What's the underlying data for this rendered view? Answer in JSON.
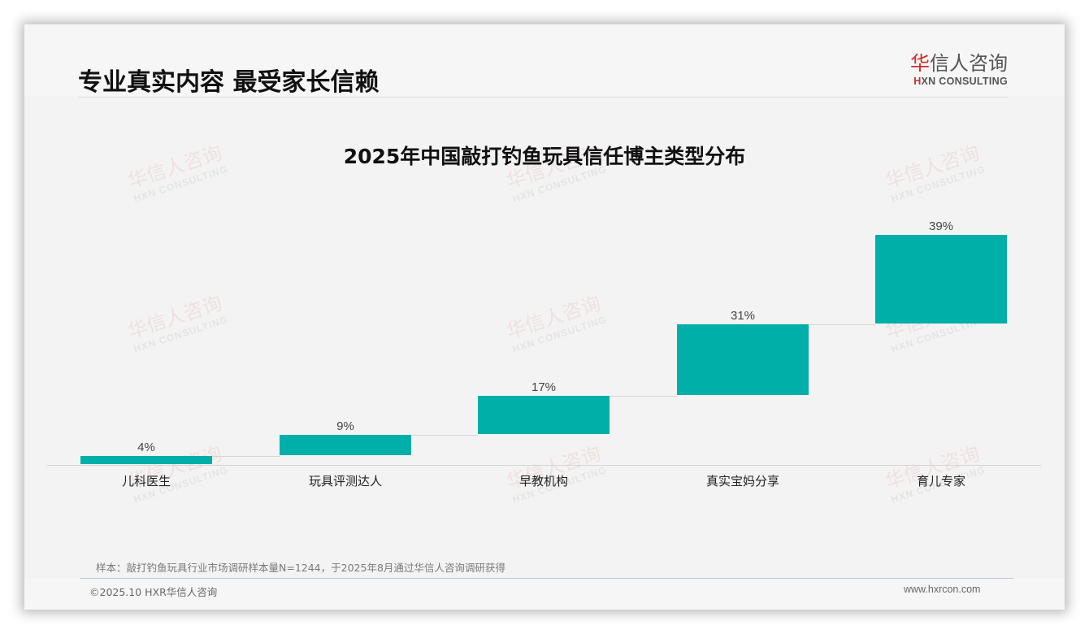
{
  "header": {
    "page_title": "专业真实内容 最受家长信赖",
    "logo": {
      "cn_mark": "华",
      "cn_rest": "信人咨询",
      "en_mark": "H",
      "en_rest": "XN CONSULTING"
    }
  },
  "watermark": {
    "cn": "华信人咨询",
    "en": "HXN CONSULTING"
  },
  "colors": {
    "bar": "#00afa8",
    "brand_red": "#d42a2a",
    "background": "#f3f3f3"
  },
  "chart_data": {
    "type": "waterfall",
    "title": "2025年中国敲打钓鱼玩具信任博主类型分布",
    "categories": [
      "儿科医生",
      "玩具评测达人",
      "早教机构",
      "真实宝妈分享",
      "育儿专家"
    ],
    "values": [
      4,
      9,
      17,
      31,
      39
    ],
    "value_labels": [
      "4%",
      "9%",
      "17%",
      "31%",
      "39%"
    ],
    "cumulative_start": [
      0,
      4,
      13,
      30,
      61
    ],
    "cumulative_end": [
      4,
      13,
      30,
      61,
      100
    ],
    "unit": "%",
    "xlabel": "",
    "ylabel": "",
    "ylim": [
      0,
      100
    ],
    "grid": false,
    "legend": false,
    "connector_lines": true
  },
  "footer": {
    "note": "样本：敲打钓鱼玩具行业市场调研样本量N=1244，于2025年8月通过华信人咨询调研获得",
    "copyright": "©2025.10 HXR华信人咨询",
    "website": "www.hxrcon.com"
  }
}
